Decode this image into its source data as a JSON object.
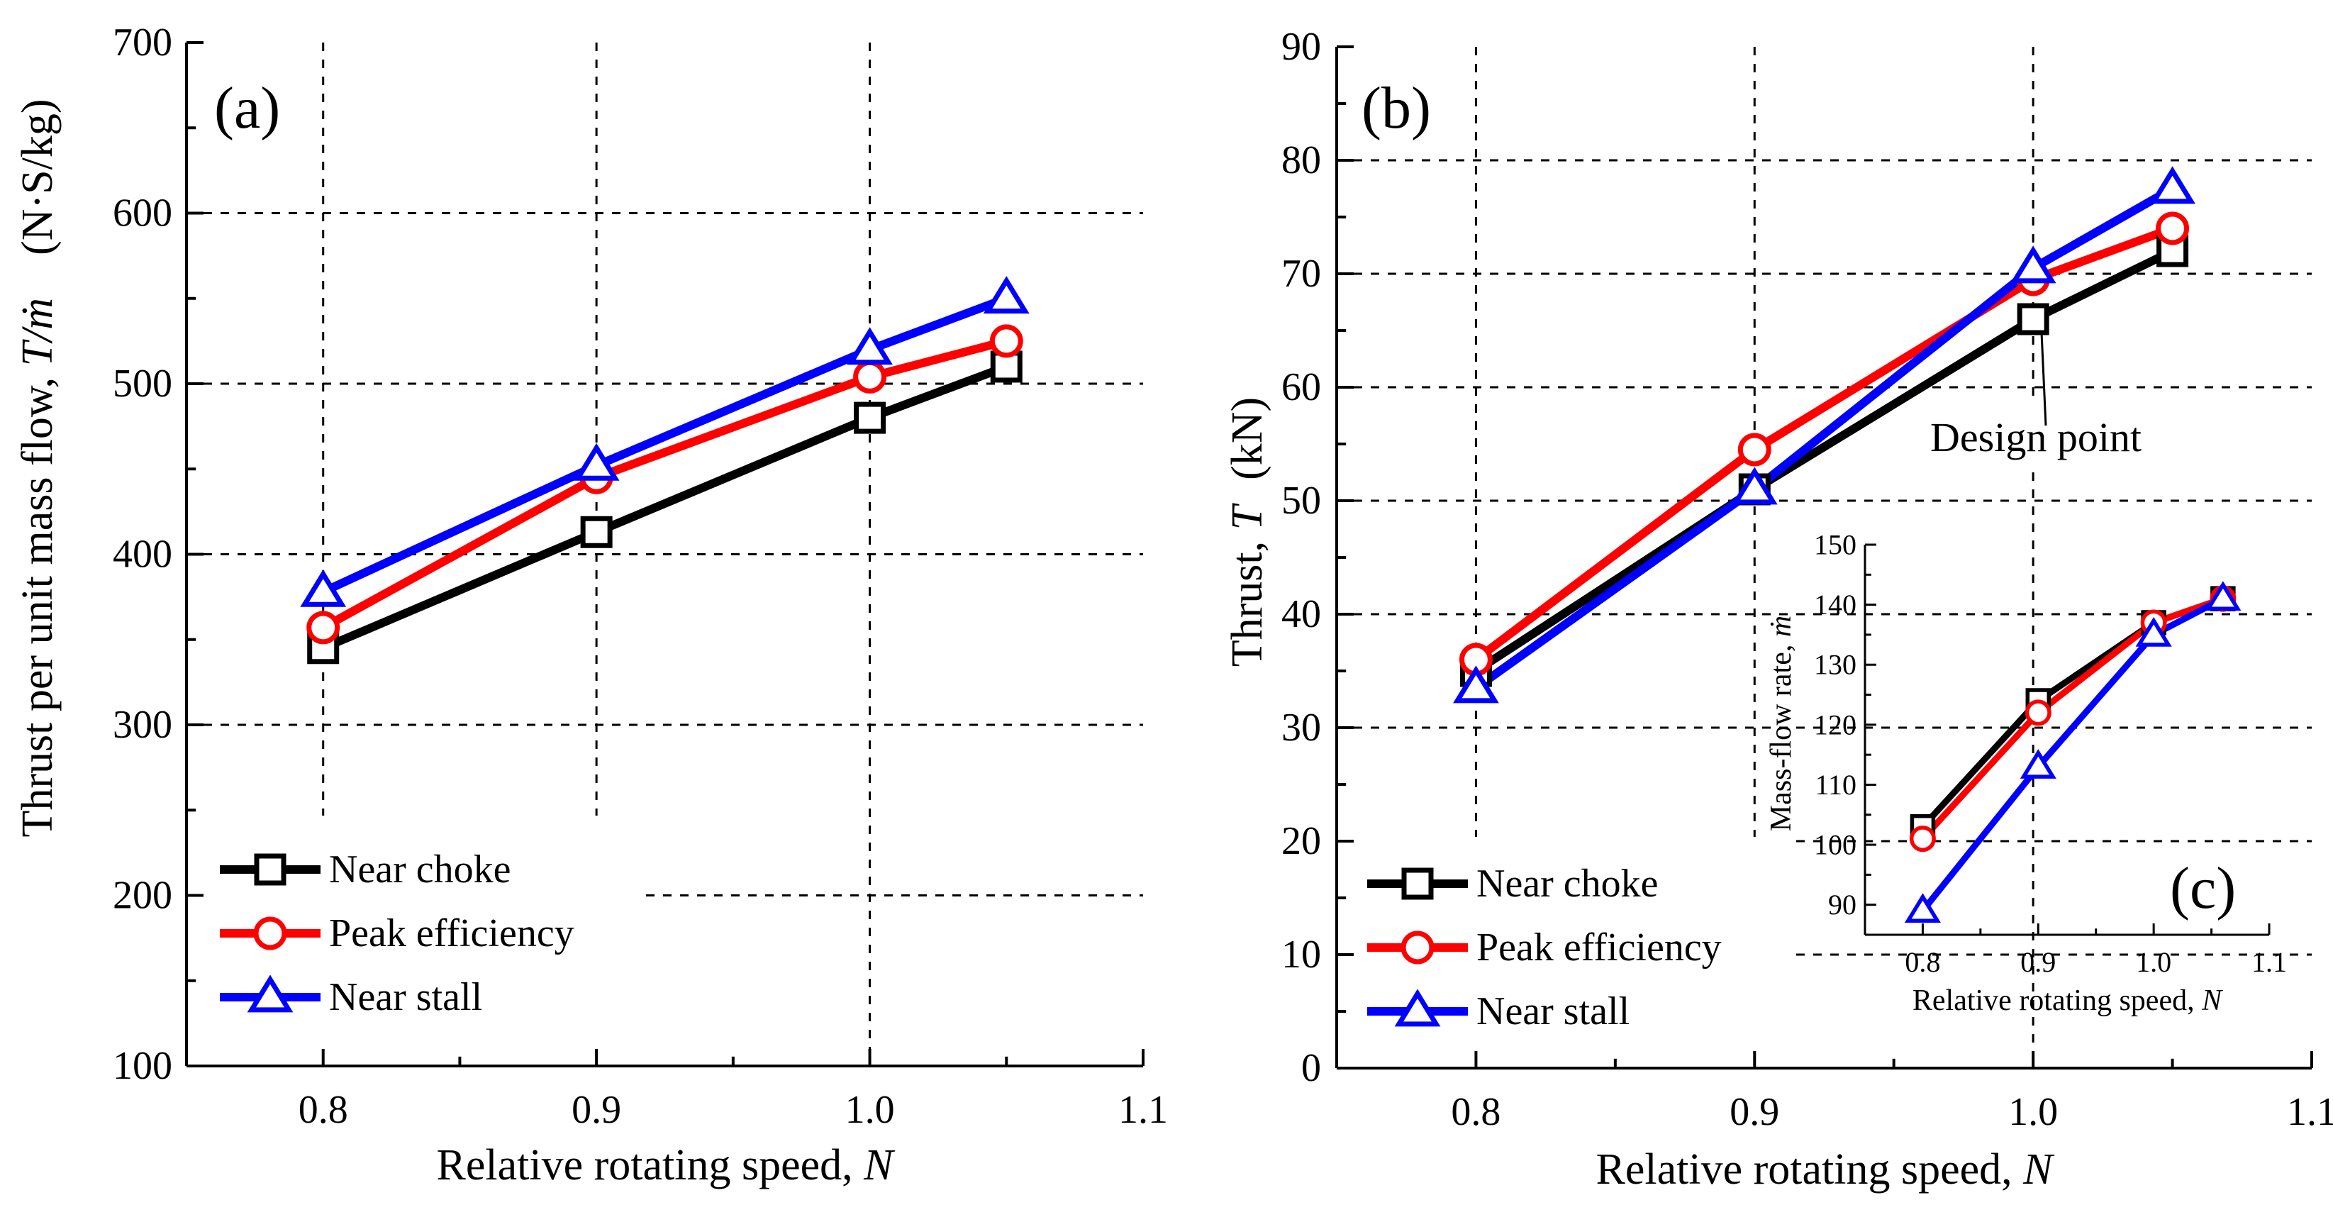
{
  "chart_data": [
    {
      "panel": "a",
      "type": "line",
      "panel_label": "(a)",
      "xlabel": "Relative rotating speed, ",
      "xlabel_var": "N",
      "ylabel": "Thrust per unit mass flow, ",
      "ylabel_var": "T/ṁ",
      "ylabel_unit": "(N·S/kg)",
      "xlim": [
        0.75,
        1.1
      ],
      "ylim": [
        100,
        700
      ],
      "xticks": [
        0.8,
        0.9,
        1.0,
        1.1
      ],
      "xtick_labels": [
        "0.8",
        "0.9",
        "1.0",
        "1.1"
      ],
      "yticks": [
        100,
        200,
        300,
        400,
        500,
        600,
        700
      ],
      "ytick_labels": [
        "100",
        "200",
        "300",
        "400",
        "500",
        "600",
        "700"
      ],
      "grid": true,
      "legend_position": "bottom-left",
      "series": [
        {
          "name": "Near choke",
          "color": "#000000",
          "marker": "square",
          "x": [
            0.8,
            0.9,
            1.0,
            1.05
          ],
          "y": [
            345,
            413,
            480,
            510
          ]
        },
        {
          "name": "Peak efficiency",
          "color": "#ff0000",
          "marker": "circle",
          "x": [
            0.8,
            0.9,
            1.0,
            1.05
          ],
          "y": [
            357,
            445,
            504,
            525
          ]
        },
        {
          "name": "Near stall",
          "color": "#0000ff",
          "marker": "triangle",
          "x": [
            0.8,
            0.9,
            1.0,
            1.05
          ],
          "y": [
            378,
            452,
            520,
            550
          ]
        }
      ]
    },
    {
      "panel": "b",
      "type": "line",
      "panel_label": "(b)",
      "xlabel": "Relative rotating speed, ",
      "xlabel_var": "N",
      "ylabel": "Thrust, ",
      "ylabel_var": "T",
      "ylabel_unit": "(kN)",
      "xlim": [
        0.75,
        1.1
      ],
      "ylim": [
        0,
        90
      ],
      "xticks": [
        0.8,
        0.9,
        1.0,
        1.1
      ],
      "xtick_labels": [
        "0.8",
        "0.9",
        "1.0",
        "1.1"
      ],
      "yticks": [
        0,
        10,
        20,
        30,
        40,
        50,
        60,
        70,
        80,
        90
      ],
      "ytick_labels": [
        "0",
        "10",
        "20",
        "30",
        "40",
        "50",
        "60",
        "70",
        "80",
        "90"
      ],
      "grid": true,
      "legend_position": "bottom-left",
      "annotation": {
        "text": "Design point",
        "x": 1.0,
        "y": 66
      },
      "series": [
        {
          "name": "Near choke",
          "color": "#000000",
          "marker": "square",
          "x": [
            0.8,
            0.9,
            1.0,
            1.05
          ],
          "y": [
            35,
            51,
            66,
            72
          ]
        },
        {
          "name": "Peak efficiency",
          "color": "#ff0000",
          "marker": "circle",
          "x": [
            0.8,
            0.9,
            1.0,
            1.05
          ],
          "y": [
            36,
            54.5,
            69.5,
            74
          ]
        },
        {
          "name": "Near stall",
          "color": "#0000ff",
          "marker": "triangle",
          "x": [
            0.8,
            0.9,
            1.0,
            1.05
          ],
          "y": [
            33.5,
            51,
            70.5,
            77.5
          ]
        }
      ]
    },
    {
      "panel": "c",
      "type": "line",
      "panel_label": "(c)",
      "xlabel": "Relative rotating speed, ",
      "xlabel_var": "N",
      "ylabel": "Mass-flow rate, ",
      "ylabel_var": "ṁ",
      "xlim": [
        0.75,
        1.1
      ],
      "ylim": [
        85,
        150
      ],
      "xticks": [
        0.8,
        0.9,
        1.0,
        1.1
      ],
      "xtick_labels": [
        "0.8",
        "0.9",
        "1.0",
        "1.1"
      ],
      "yticks": [
        90,
        100,
        110,
        120,
        130,
        140,
        150
      ],
      "ytick_labels": [
        "90",
        "100",
        "110",
        "120",
        "130",
        "140",
        "150"
      ],
      "grid": false,
      "series": [
        {
          "name": "Near choke",
          "color": "#000000",
          "marker": "square",
          "x": [
            0.8,
            0.9,
            1.0,
            1.06
          ],
          "y": [
            103,
            124,
            137,
            141
          ]
        },
        {
          "name": "Peak efficiency",
          "color": "#ff0000",
          "marker": "circle",
          "x": [
            0.8,
            0.9,
            1.0,
            1.06
          ],
          "y": [
            101,
            122,
            137,
            141
          ]
        },
        {
          "name": "Near stall",
          "color": "#0000ff",
          "marker": "triangle",
          "x": [
            0.8,
            0.9,
            1.0,
            1.06
          ],
          "y": [
            89,
            113,
            135,
            141
          ]
        }
      ]
    }
  ]
}
